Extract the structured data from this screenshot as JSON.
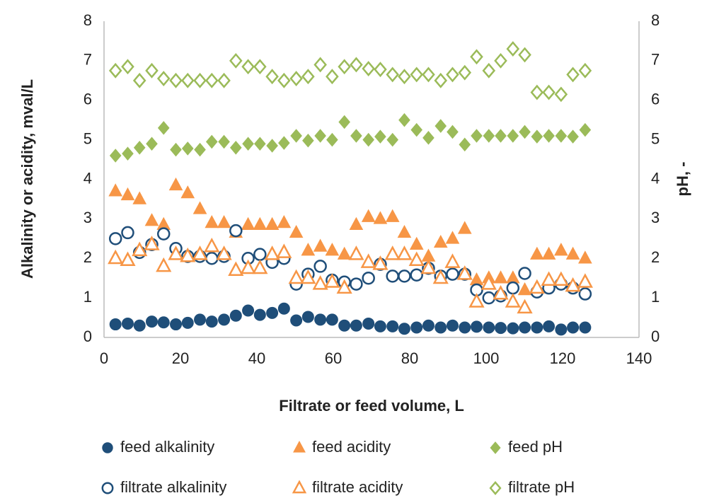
{
  "chart_data": {
    "type": "scatter",
    "xlabel": "Filtrate or feed volume, L",
    "ylabel": "Alkalinity or acidity, mval/L",
    "y2label": "pH, -",
    "x": [
      3,
      6.2,
      9.3,
      12.5,
      15.6,
      18.8,
      21.9,
      25.1,
      28.2,
      31.4,
      34.5,
      37.7,
      40.8,
      44,
      47.1,
      50.3,
      53.4,
      56.6,
      59.7,
      62.9,
      66,
      69.2,
      72.3,
      75.5,
      78.6,
      81.8,
      84.9,
      88.1,
      91.2,
      94.4,
      97.5,
      100.7,
      103.8,
      107,
      110.1,
      113.3,
      116.4,
      119.6,
      122.7,
      125.9
    ],
    "xlim": [
      0,
      140
    ],
    "xticks": [
      0,
      20,
      40,
      60,
      80,
      100,
      120,
      140
    ],
    "ylim": [
      0,
      8
    ],
    "yticks": [
      0,
      1,
      2,
      3,
      4,
      5,
      6,
      7,
      8
    ],
    "y2lim": [
      0,
      8
    ],
    "y2ticks": [
      0,
      1,
      2,
      3,
      4,
      5,
      6,
      7,
      8
    ],
    "grid": false,
    "legend": "bottom",
    "series": [
      {
        "name": "feed alkalinity",
        "color": "#1f4e79",
        "marker": "circle",
        "filled": true,
        "values": [
          0.33,
          0.35,
          0.3,
          0.4,
          0.38,
          0.33,
          0.37,
          0.45,
          0.4,
          0.45,
          0.55,
          0.68,
          0.57,
          0.62,
          0.73,
          0.43,
          0.52,
          0.45,
          0.45,
          0.3,
          0.3,
          0.35,
          0.28,
          0.28,
          0.22,
          0.25,
          0.3,
          0.25,
          0.3,
          0.25,
          0.27,
          0.25,
          0.24,
          0.23,
          0.25,
          0.25,
          0.28,
          0.2,
          0.25,
          0.25
        ]
      },
      {
        "name": "feed acidity",
        "color": "#f79646",
        "marker": "triangle",
        "filled": true,
        "values": [
          3.7,
          3.6,
          3.5,
          2.95,
          2.85,
          3.85,
          3.65,
          3.25,
          2.9,
          2.9,
          2.65,
          2.85,
          2.85,
          2.85,
          2.9,
          2.65,
          2.2,
          2.3,
          2.2,
          2.1,
          2.85,
          3.05,
          3.0,
          3.05,
          2.65,
          2.35,
          2.05,
          2.4,
          2.5,
          2.75,
          1.45,
          1.5,
          1.5,
          1.5,
          1.2,
          2.1,
          2.1,
          2.2,
          2.1,
          2.0
        ]
      },
      {
        "name": "feed pH",
        "color": "#9bbb59",
        "marker": "diamond",
        "filled": true,
        "axis": "y2",
        "values": [
          4.6,
          4.65,
          4.8,
          4.9,
          5.3,
          4.75,
          4.78,
          4.75,
          4.95,
          4.95,
          4.8,
          4.9,
          4.9,
          4.85,
          4.92,
          5.1,
          4.98,
          5.1,
          5.0,
          5.45,
          5.1,
          5.0,
          5.08,
          5.0,
          5.5,
          5.25,
          5.05,
          5.35,
          5.2,
          4.88,
          5.1,
          5.1,
          5.1,
          5.1,
          5.2,
          5.08,
          5.1,
          5.1,
          5.08,
          5.25
        ]
      },
      {
        "name": "filtrate alkalinity",
        "color": "#1f4e79",
        "marker": "circle",
        "filled": false,
        "values": [
          2.5,
          2.65,
          2.15,
          2.35,
          2.62,
          2.25,
          2.05,
          2.05,
          2.0,
          2.05,
          2.7,
          2.0,
          2.1,
          1.9,
          2.0,
          1.35,
          1.6,
          1.8,
          1.45,
          1.4,
          1.35,
          1.5,
          1.85,
          1.55,
          1.55,
          1.58,
          1.75,
          1.55,
          1.6,
          1.6,
          1.2,
          1.0,
          1.05,
          1.25,
          1.62,
          1.15,
          1.25,
          1.35,
          1.25,
          1.1
        ]
      },
      {
        "name": "filtrate acidity",
        "color": "#f79646",
        "marker": "triangle",
        "filled": false,
        "values": [
          2.0,
          1.95,
          2.2,
          2.35,
          1.8,
          2.1,
          2.05,
          2.1,
          2.3,
          2.1,
          1.7,
          1.75,
          1.75,
          2.1,
          2.15,
          1.5,
          1.5,
          1.35,
          1.4,
          1.25,
          2.1,
          1.9,
          1.85,
          2.1,
          2.1,
          1.95,
          1.75,
          1.5,
          1.9,
          1.6,
          0.9,
          1.35,
          1.1,
          0.9,
          0.75,
          1.25,
          1.45,
          1.45,
          1.3,
          1.4
        ]
      },
      {
        "name": "filtrate pH",
        "color": "#9bbb59",
        "marker": "diamond",
        "filled": false,
        "axis": "y2",
        "values": [
          6.75,
          6.85,
          6.5,
          6.75,
          6.55,
          6.5,
          6.5,
          6.5,
          6.5,
          6.5,
          7.0,
          6.85,
          6.85,
          6.6,
          6.5,
          6.55,
          6.6,
          6.9,
          6.6,
          6.85,
          6.9,
          6.8,
          6.78,
          6.65,
          6.6,
          6.65,
          6.65,
          6.5,
          6.65,
          6.7,
          7.1,
          6.75,
          7.0,
          7.3,
          7.15,
          6.2,
          6.2,
          6.15,
          6.65,
          6.75
        ]
      }
    ]
  }
}
